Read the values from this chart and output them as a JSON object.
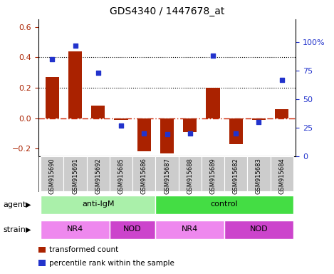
{
  "title": "GDS4340 / 1447678_at",
  "samples": [
    "GSM915690",
    "GSM915691",
    "GSM915692",
    "GSM915685",
    "GSM915686",
    "GSM915687",
    "GSM915688",
    "GSM915689",
    "GSM915682",
    "GSM915683",
    "GSM915684"
  ],
  "transformed_count": [
    0.27,
    0.44,
    0.08,
    -0.01,
    -0.22,
    -0.23,
    -0.09,
    0.2,
    -0.17,
    -0.01,
    0.06
  ],
  "percentile_rank": [
    85,
    97,
    73,
    27,
    20,
    19,
    20,
    88,
    20,
    30,
    67
  ],
  "bar_color": "#aa2200",
  "dot_color": "#2233cc",
  "left_ylim": [
    -0.25,
    0.65
  ],
  "right_ylim": [
    0,
    120
  ],
  "left_yticks": [
    -0.2,
    0.0,
    0.2,
    0.4,
    0.6
  ],
  "right_yticks": [
    0,
    25,
    50,
    75,
    100
  ],
  "right_yticklabels": [
    "0",
    "25",
    "50",
    "75",
    "100%"
  ],
  "hline_values": [
    0.0,
    0.2,
    0.4
  ],
  "hline_styles": [
    "dashdot",
    "dotted",
    "dotted"
  ],
  "hline_colors": [
    "#cc2200",
    "#000000",
    "#000000"
  ],
  "agent_groups": [
    {
      "label": "anti-IgM",
      "start": 0,
      "end": 5,
      "color": "#aaf0aa"
    },
    {
      "label": "control",
      "start": 5,
      "end": 11,
      "color": "#44dd44"
    }
  ],
  "strain_groups": [
    {
      "label": "NR4",
      "start": 0,
      "end": 3,
      "color": "#ee88ee"
    },
    {
      "label": "NOD",
      "start": 3,
      "end": 5,
      "color": "#cc44cc"
    },
    {
      "label": "NR4",
      "start": 5,
      "end": 8,
      "color": "#ee88ee"
    },
    {
      "label": "NOD",
      "start": 8,
      "end": 11,
      "color": "#cc44cc"
    }
  ],
  "legend_items": [
    {
      "label": "transformed count",
      "color": "#aa2200"
    },
    {
      "label": "percentile rank within the sample",
      "color": "#2233cc"
    }
  ],
  "agent_label": "agent",
  "strain_label": "strain",
  "xlabel_bg": "#cccccc",
  "fig_bg": "#ffffff"
}
